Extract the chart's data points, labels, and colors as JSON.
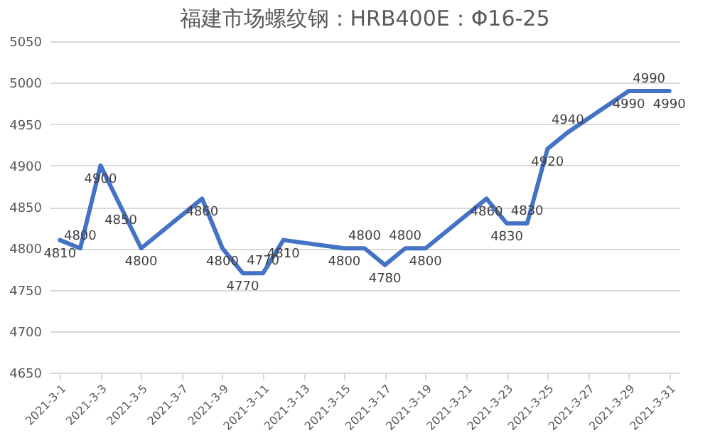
{
  "chart_data": {
    "type": "line",
    "title": "福建市场螺纹钢：HRB400E：Φ16-25",
    "x": [
      "2021-03-01",
      "2021-03-02",
      "2021-03-03",
      "2021-03-04",
      "2021-03-05",
      "2021-03-08",
      "2021-03-09",
      "2021-03-10",
      "2021-03-11",
      "2021-03-12",
      "2021-03-15",
      "2021-03-16",
      "2021-03-17",
      "2021-03-18",
      "2021-03-19",
      "2021-03-22",
      "2021-03-23",
      "2021-03-24",
      "2021-03-25",
      "2021-03-26",
      "2021-03-29",
      "2021-03-30",
      "2021-03-31"
    ],
    "series": [
      {
        "color": "#4472c4",
        "values": [
          4810,
          4800,
          4900,
          4850,
          4800,
          4860,
          4800,
          4770,
          4770,
          4810,
          4800,
          4800,
          4780,
          4800,
          4800,
          4860,
          4830,
          4830,
          4920,
          4940,
          4990,
          4990,
          4990
        ]
      }
    ],
    "xlim": [
      "2021-02-28T12:00",
      "2021-03-31T12:00"
    ],
    "xticks": [
      {
        "value": "2021-03-01",
        "label": "2021-3-1"
      },
      {
        "value": "2021-03-03",
        "label": "2021-3-3"
      },
      {
        "value": "2021-03-05",
        "label": "2021-3-5"
      },
      {
        "value": "2021-03-07",
        "label": "2021-3-7"
      },
      {
        "value": "2021-03-09",
        "label": "2021-3-9"
      },
      {
        "value": "2021-03-11",
        "label": "2021-3-11"
      },
      {
        "value": "2021-03-13",
        "label": "2021-3-13"
      },
      {
        "value": "2021-03-15",
        "label": "2021-3-15"
      },
      {
        "value": "2021-03-17",
        "label": "2021-3-17"
      },
      {
        "value": "2021-03-19",
        "label": "2021-3-19"
      },
      {
        "value": "2021-03-21",
        "label": "2021-3-21"
      },
      {
        "value": "2021-03-23",
        "label": "2021-3-23"
      },
      {
        "value": "2021-03-25",
        "label": "2021-3-25"
      },
      {
        "value": "2021-03-27",
        "label": "2021-3-27"
      },
      {
        "value": "2021-03-29",
        "label": "2021-3-29"
      },
      {
        "value": "2021-03-31",
        "label": "2021-3-31"
      }
    ],
    "ylim": [
      4650,
      5050
    ],
    "yticks": [
      4650,
      4700,
      4750,
      4800,
      4850,
      4900,
      4950,
      5000,
      5050
    ],
    "grid": "y",
    "data_labels": true,
    "marker": "none",
    "line_style": "solid",
    "legend": false
  }
}
